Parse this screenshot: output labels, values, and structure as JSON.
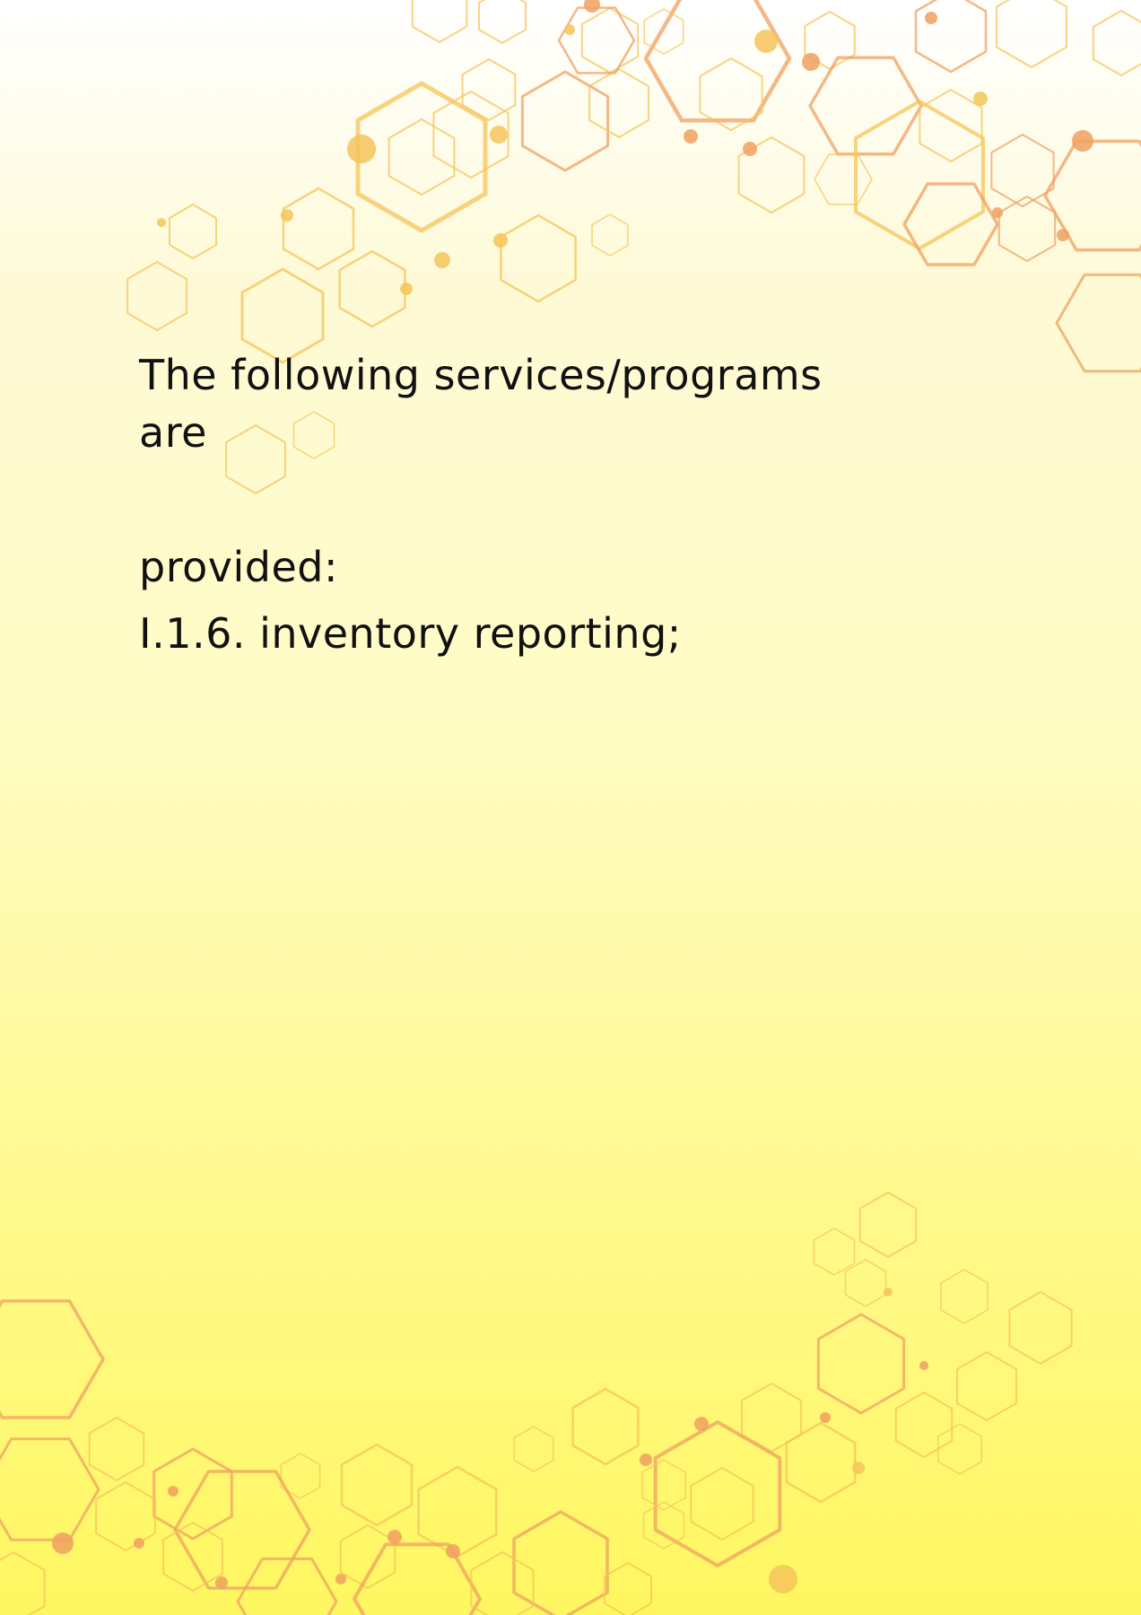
{
  "content": {
    "intro": "The following services/programs are",
    "provided": "provided:",
    "item": "I.1.6. inventory reporting;"
  },
  "colors": {
    "background_top": "#ffffff",
    "background_bottom": "#fff760",
    "hexagon_orange": "#f0a060",
    "hexagon_gold": "#f5c45a",
    "text": "#111111"
  },
  "icons": {
    "decoration": "hexagon-network-pattern"
  }
}
